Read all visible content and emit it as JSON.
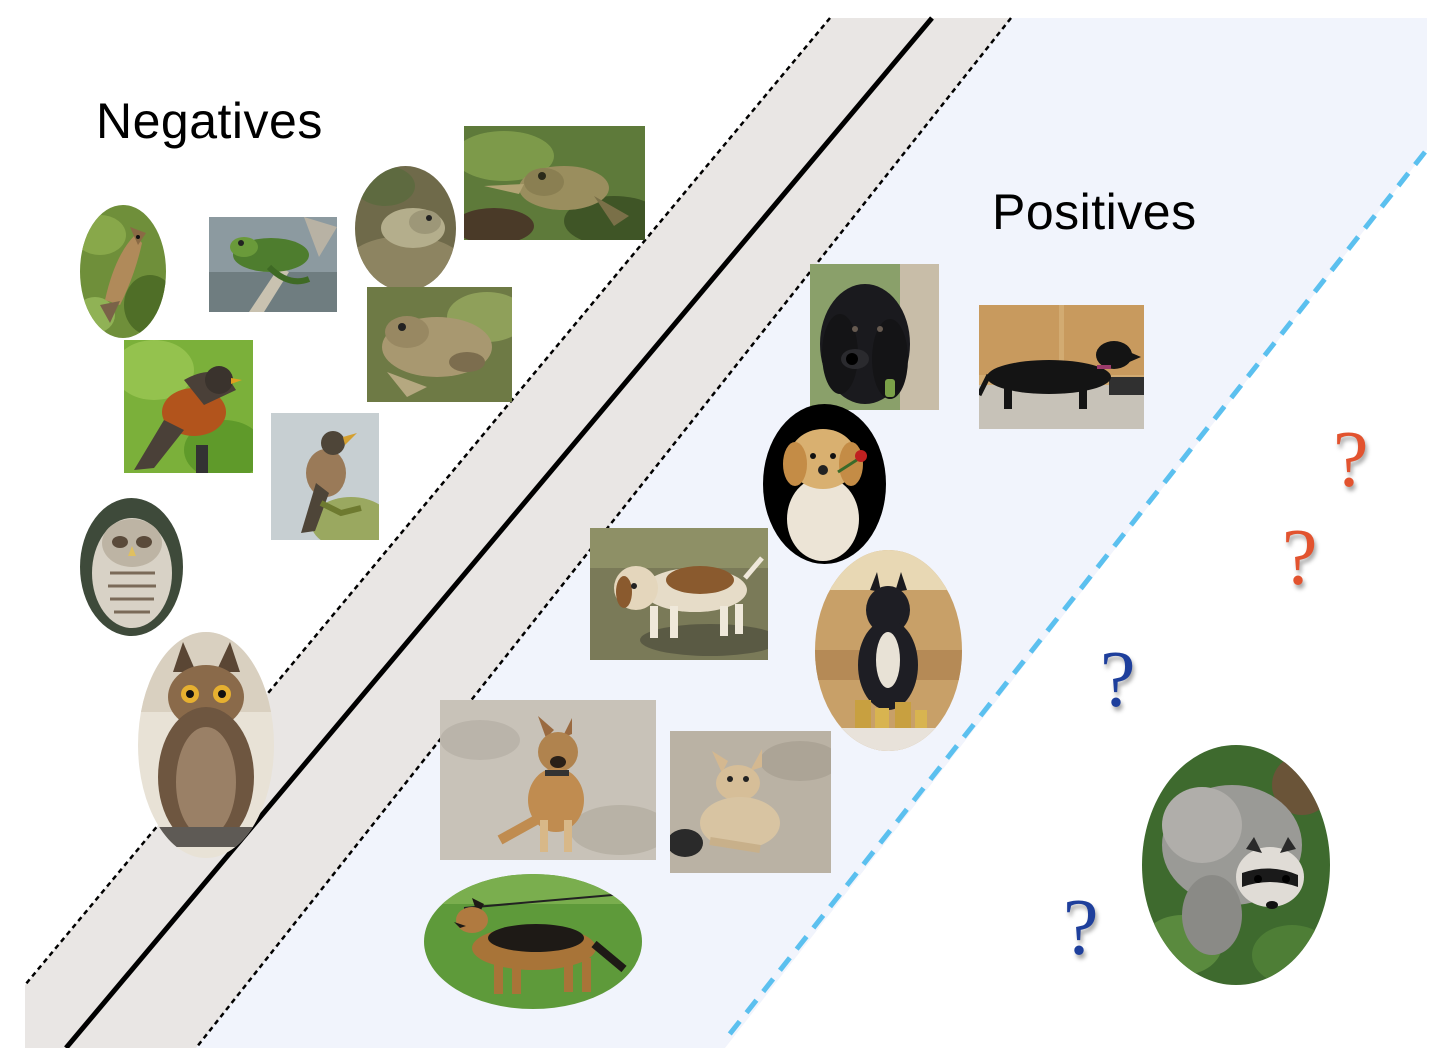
{
  "labels": {
    "negatives": "Negatives",
    "positives": "Positives"
  },
  "question_mark": "?",
  "colors": {
    "margin_band": "#e9e6e4",
    "positive_region": "#f1f4fc",
    "boundary": "#000000",
    "candidate_boundary": "#5bc0ef",
    "question_red": "#e2532f",
    "question_blue": "#1e3f9c"
  },
  "negatives": [
    {
      "name": "cedar-waxwing-photo",
      "subject": "bird"
    },
    {
      "name": "green-frog-on-branch-photo",
      "subject": "frog"
    },
    {
      "name": "bullfrog-oval-photo",
      "subject": "frog"
    },
    {
      "name": "tree-frog-photo",
      "subject": "frog"
    },
    {
      "name": "toad-photo",
      "subject": "frog"
    },
    {
      "name": "robin-on-post-photo",
      "subject": "bird"
    },
    {
      "name": "robin-singing-photo",
      "subject": "bird"
    },
    {
      "name": "barred-owl-photo",
      "subject": "owl"
    },
    {
      "name": "great-horned-owl-photo",
      "subject": "owl"
    }
  ],
  "positives": [
    {
      "name": "spaniel-photo",
      "subject": "dog"
    },
    {
      "name": "dachshund-photo",
      "subject": "dog"
    },
    {
      "name": "golden-puppy-photo",
      "subject": "dog"
    },
    {
      "name": "beagle-photo",
      "subject": "dog"
    },
    {
      "name": "boxer-trophies-photo",
      "subject": "dog"
    },
    {
      "name": "mixed-dog-sitting-photo",
      "subject": "dog"
    },
    {
      "name": "dog-lying-sand-photo",
      "subject": "dog"
    },
    {
      "name": "german-shepherd-photo",
      "subject": "dog"
    }
  ],
  "unlabeled": [
    {
      "name": "raccoon-photo",
      "subject": "raccoon"
    }
  ]
}
